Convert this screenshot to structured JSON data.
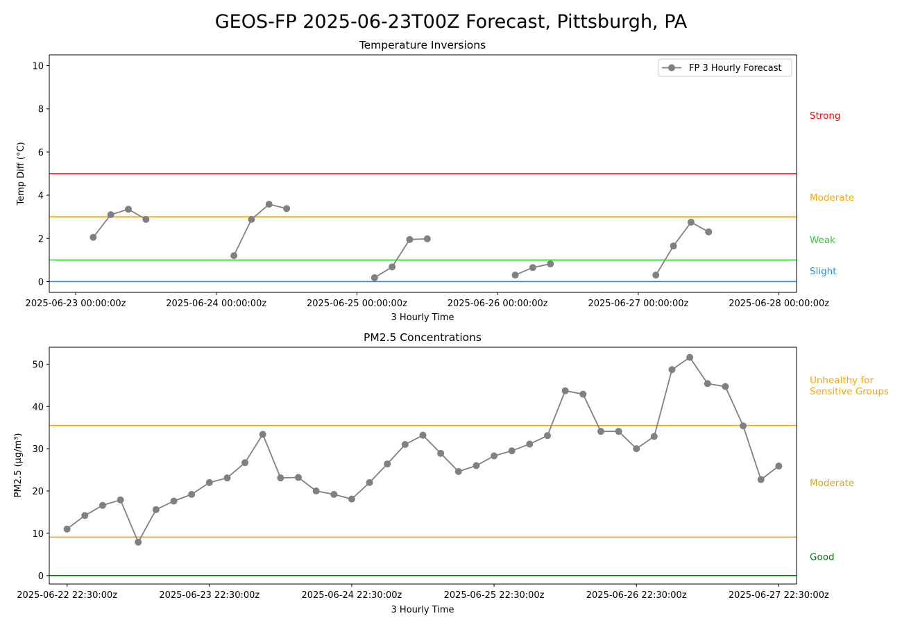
{
  "chart_data": [
    {
      "type": "line",
      "suptitle": "GEOS-FP 2025-06-23T00Z Forecast, Pittsburgh, PA",
      "title": "Temperature Inversions",
      "xlabel": "3 Hourly Time",
      "ylabel": "Temp Diff (°C)",
      "ylim": [
        -0.5,
        10.5
      ],
      "y_ticks": [
        0,
        2,
        4,
        6,
        8,
        10
      ],
      "x_ticks": [
        0,
        24,
        48,
        72,
        96,
        120
      ],
      "x_tick_labels": [
        "2025-06-23 00:00:00z",
        "2025-06-24 00:00:00z",
        "2025-06-25 00:00:00z",
        "2025-06-26 00:00:00z",
        "2025-06-27 00:00:00z",
        "2025-06-28 00:00:00z"
      ],
      "xlim": [
        -4.5,
        123
      ],
      "legend": "top-right",
      "series": [
        {
          "name": "FP 3 Hourly Forecast",
          "color": "#808080",
          "segments": [
            [
              [
                3,
                2.05
              ],
              [
                6,
                3.1
              ],
              [
                9,
                3.35
              ],
              [
                12,
                2.88
              ]
            ],
            [
              [
                27,
                1.2
              ],
              [
                30,
                2.88
              ],
              [
                33,
                3.58
              ],
              [
                36,
                3.38
              ]
            ],
            [
              [
                51,
                0.18
              ],
              [
                54,
                0.68
              ],
              [
                57,
                1.95
              ],
              [
                60,
                1.98
              ]
            ],
            [
              [
                75,
                0.3
              ],
              [
                78,
                0.65
              ],
              [
                81,
                0.82
              ]
            ],
            [
              [
                99,
                0.3
              ],
              [
                102,
                1.65
              ],
              [
                105,
                2.75
              ],
              [
                108,
                2.3
              ]
            ]
          ]
        }
      ],
      "thresholds": [
        {
          "value": 5,
          "color": "#ff0000",
          "label": "Strong",
          "label_y": 7.7
        },
        {
          "value": 3,
          "color": "#ffa500",
          "label": "Moderate",
          "label_y": 3.9
        },
        {
          "value": 1,
          "color": "#32cd32",
          "label": "Weak",
          "label_y": 1.95
        },
        {
          "value": 0,
          "color": "#1e90ff",
          "label": "Slight",
          "label_y": 0.5
        }
      ]
    },
    {
      "type": "line",
      "title": "PM2.5 Concentrations",
      "xlabel": "3 Hourly Time",
      "ylabel": "PM2.5 (μg/m³)",
      "ylim": [
        -2,
        54
      ],
      "y_ticks": [
        0,
        10,
        20,
        30,
        40,
        50
      ],
      "x_ticks": [
        0,
        8,
        16,
        24,
        32,
        40
      ],
      "x_tick_labels": [
        "2025-06-22 22:30:00z",
        "2025-06-23 22:30:00z",
        "2025-06-24 22:30:00z",
        "2025-06-25 22:30:00z",
        "2025-06-26 22:30:00z",
        "2025-06-27 22:30:00z"
      ],
      "xlim": [
        -1,
        41
      ],
      "series": [
        {
          "color": "#808080",
          "x": [
            0,
            1,
            2,
            3,
            4,
            5,
            6,
            7,
            8,
            9,
            10,
            11,
            12,
            13,
            14,
            15,
            16,
            17,
            18,
            19,
            20,
            21,
            22,
            23,
            24,
            25,
            26,
            27,
            28,
            29,
            30,
            31,
            32,
            33,
            34,
            35,
            36,
            37,
            38,
            39,
            40
          ],
          "y": [
            11.0,
            14.2,
            16.6,
            17.9,
            7.9,
            15.6,
            17.6,
            19.2,
            22.0,
            23.1,
            26.7,
            33.4,
            23.1,
            23.2,
            20.0,
            19.2,
            18.1,
            22.0,
            26.4,
            31.0,
            33.2,
            28.9,
            24.6,
            26.0,
            28.3,
            29.5,
            31.1,
            33.1,
            43.7,
            42.9,
            34.1,
            34.1,
            30.0,
            32.9,
            48.7,
            51.6,
            45.4,
            44.7,
            35.4,
            22.7,
            25.9
          ]
        }
      ],
      "thresholds": [
        {
          "value": 35.5,
          "color": "#ffa500",
          "label": [
            "Unhealthy for",
            "Sensitive Groups"
          ],
          "label_y": 45
        },
        {
          "value": 9.1,
          "color": "#daa520",
          "label": "Moderate",
          "label_y": 22
        },
        {
          "value": 0,
          "color": "#008000",
          "label": "Good",
          "label_y": 4.5
        }
      ]
    }
  ]
}
